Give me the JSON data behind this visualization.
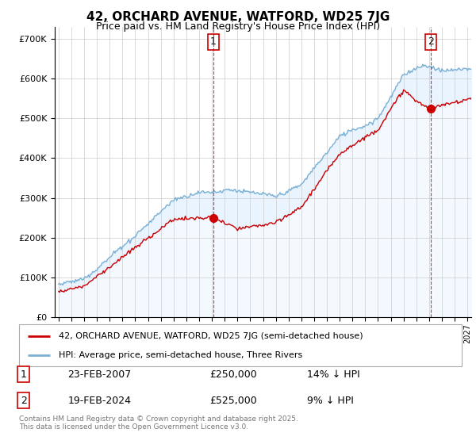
{
  "title": "42, ORCHARD AVENUE, WATFORD, WD25 7JG",
  "subtitle": "Price paid vs. HM Land Registry's House Price Index (HPI)",
  "legend_line1": "42, ORCHARD AVENUE, WATFORD, WD25 7JG (semi-detached house)",
  "legend_line2": "HPI: Average price, semi-detached house, Three Rivers",
  "transaction1_date": "23-FEB-2007",
  "transaction1_price": "£250,000",
  "transaction1_hpi": "14% ↓ HPI",
  "transaction2_date": "19-FEB-2024",
  "transaction2_price": "£525,000",
  "transaction2_hpi": "9% ↓ HPI",
  "footer": "Contains HM Land Registry data © Crown copyright and database right 2025.\nThis data is licensed under the Open Government Licence v3.0.",
  "ylim": [
    0,
    730000
  ],
  "yticks": [
    0,
    100000,
    200000,
    300000,
    400000,
    500000,
    600000,
    700000
  ],
  "xlim_start": 1994.7,
  "xlim_end": 2027.3,
  "line_color_red": "#cc0000",
  "line_color_blue": "#7ab0d4",
  "fill_color_blue": "#ddeeff",
  "vline1_x": 2007.12,
  "vline2_x": 2024.12,
  "marker1_x": 2007.12,
  "marker1_y": 250000,
  "marker2_x": 2024.12,
  "marker2_y": 525000,
  "background_color": "#ffffff",
  "grid_color": "#cccccc"
}
